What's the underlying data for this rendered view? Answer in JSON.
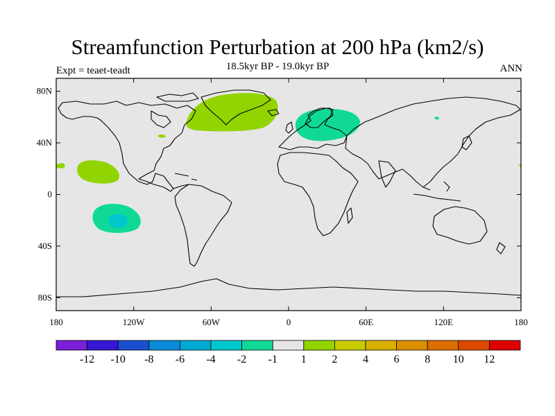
{
  "header": {
    "title": "Streamfunction Perturbation at 200 hPa (km2/s)",
    "subtitle": "18.5kyr BP - 19.0kyr BP",
    "left_label": "Expt = teaet-teadt",
    "right_label": "ANN"
  },
  "map": {
    "land_color": "#e6e6e6",
    "coast_color": "#000000",
    "lat_ticks": [
      {
        "value": 80,
        "label": "80N"
      },
      {
        "value": 40,
        "label": "40N"
      },
      {
        "value": 0,
        "label": "0"
      },
      {
        "value": -40,
        "label": "40S"
      },
      {
        "value": -80,
        "label": "80S"
      }
    ],
    "lon_ticks": [
      {
        "value": -180,
        "label": "180"
      },
      {
        "value": -120,
        "label": "120W"
      },
      {
        "value": -60,
        "label": "60W"
      },
      {
        "value": 0,
        "label": "0"
      },
      {
        "value": 60,
        "label": "60E"
      },
      {
        "value": 120,
        "label": "120E"
      },
      {
        "value": 180,
        "label": "180"
      }
    ]
  },
  "colorbar": {
    "colors": [
      "#7a1fd8",
      "#3816d6",
      "#1a4fd2",
      "#0a89d8",
      "#00a9d4",
      "#00c8cc",
      "#10d998",
      "#e6e6e6",
      "#92d400",
      "#c8cc00",
      "#d8b000",
      "#da8e00",
      "#dc6e00",
      "#dc4800",
      "#dc0000"
    ],
    "labels": [
      "-12",
      "-10",
      "-8",
      "-6",
      "-4",
      "-2",
      "-1",
      "1",
      "2",
      "4",
      "6",
      "8",
      "10",
      "12"
    ]
  }
}
